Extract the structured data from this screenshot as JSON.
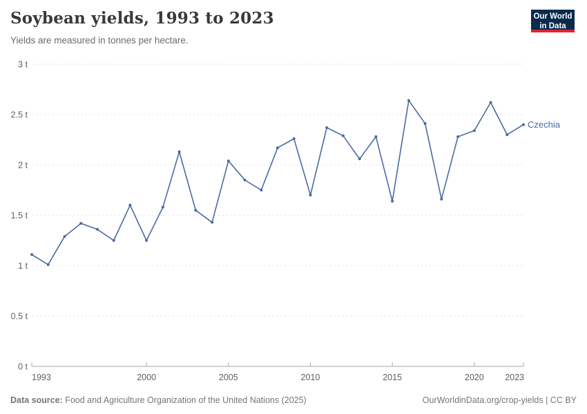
{
  "header": {
    "title": "Soybean yields, 1993 to 2023",
    "subtitle": "Yields are measured in tonnes per hectare."
  },
  "logo": {
    "line1": "Our World",
    "line2": "in Data",
    "bg_color": "#0b2a4c",
    "bar_color": "#e0233c"
  },
  "chart_data": {
    "type": "line",
    "title": "Soybean yields, 1993 to 2023",
    "subtitle": "Yields are measured in tonnes per hectare.",
    "xlabel": "",
    "ylabel": "tonnes per hectare",
    "unit_suffix": " t",
    "xlim": [
      1993,
      2023
    ],
    "ylim": [
      0,
      3
    ],
    "grid": "horizontal-dashed",
    "legend_position": "end-of-line-label",
    "entity_label": "Czechia",
    "x": [
      1993,
      1994,
      1995,
      1996,
      1997,
      1998,
      1999,
      2000,
      2001,
      2002,
      2003,
      2004,
      2005,
      2006,
      2007,
      2008,
      2009,
      2010,
      2011,
      2012,
      2013,
      2014,
      2015,
      2016,
      2017,
      2018,
      2019,
      2020,
      2021,
      2022,
      2023
    ],
    "series": [
      {
        "name": "Czechia",
        "color": "#4a69a2",
        "values": [
          1.11,
          1.01,
          1.29,
          1.42,
          1.36,
          1.25,
          1.6,
          1.25,
          1.58,
          2.13,
          1.55,
          1.43,
          2.04,
          1.85,
          1.75,
          2.17,
          2.26,
          1.7,
          2.37,
          2.29,
          2.06,
          2.28,
          1.64,
          2.64,
          2.41,
          1.66,
          2.28,
          2.34,
          2.62,
          2.3,
          2.4
        ]
      }
    ],
    "x_ticks": [
      {
        "year": 1993,
        "label": "1993",
        "align": "start"
      },
      {
        "year": 2000,
        "label": "2000",
        "align": "middle"
      },
      {
        "year": 2005,
        "label": "2005",
        "align": "middle"
      },
      {
        "year": 2010,
        "label": "2010",
        "align": "middle"
      },
      {
        "year": 2015,
        "label": "2015",
        "align": "middle"
      },
      {
        "year": 2020,
        "label": "2020",
        "align": "middle"
      },
      {
        "year": 2023,
        "label": "2023",
        "align": "end"
      }
    ],
    "y_ticks": [
      {
        "value": 0,
        "label": "0 t"
      },
      {
        "value": 0.5,
        "label": "0.5 t"
      },
      {
        "value": 1,
        "label": "1 t"
      },
      {
        "value": 1.5,
        "label": "1.5 t"
      },
      {
        "value": 2,
        "label": "2 t"
      },
      {
        "value": 2.5,
        "label": "2.5 t"
      },
      {
        "value": 3,
        "label": "3 t"
      }
    ]
  },
  "footer": {
    "source_bold": "Data source:",
    "source_rest": " Food and Agriculture Organization of the United Nations (2025)",
    "right": "OurWorldinData.org/crop-yields | CC BY"
  },
  "colors": {
    "line": "#4a69a2",
    "grid": "#dddddd",
    "axis": "#a6a6a6",
    "tick_text": "#5e5e5e",
    "title_text": "#383838",
    "subtitle_text": "#6b6b6b",
    "footer_text": "#757575"
  }
}
